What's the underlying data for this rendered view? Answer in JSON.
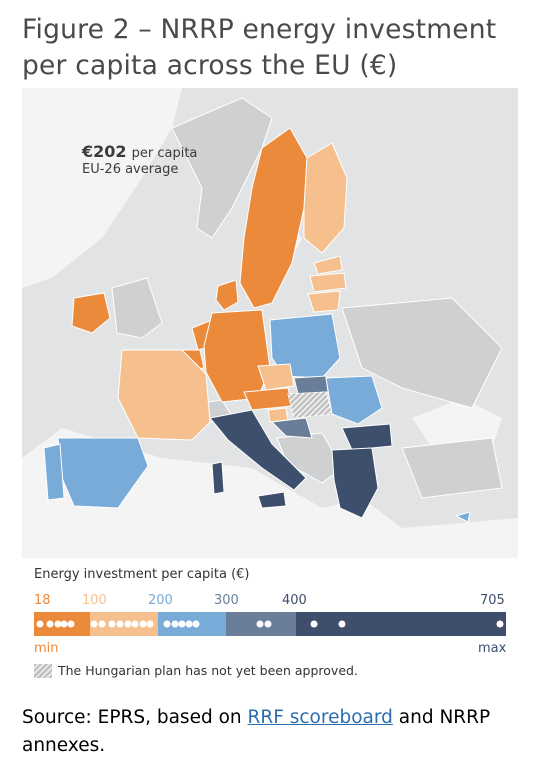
{
  "title": "Figure 2 – NRRP energy investment per capita across the EU (€)",
  "average": {
    "value": "€202",
    "unit": "per capita",
    "label": "EU-26 average"
  },
  "legend": {
    "title": "Energy investment per capita (€)",
    "breaks": [
      "18",
      "100",
      "200",
      "300",
      "400",
      "705"
    ],
    "min_label": "min",
    "max_label": "max",
    "classes": [
      {
        "from": 18,
        "to": 100,
        "color": "#ec8a3b"
      },
      {
        "from": 100,
        "to": 200,
        "color": "#f5bf8e"
      },
      {
        "from": 200,
        "to": 300,
        "color": "#79abd9"
      },
      {
        "from": 300,
        "to": 400,
        "color": "#6a7e99"
      },
      {
        "from": 400,
        "to": 705,
        "color": "#3e4f6d"
      }
    ],
    "hungary_note": "The Hungarian plan has not yet been approved."
  },
  "country_classes": {
    "Ireland": "18-100",
    "Sweden": "18-100",
    "Denmark": "18-100",
    "Germany": "18-100",
    "Netherlands": "18-100",
    "Belgium": "18-100",
    "Luxembourg": "18-100",
    "Czechia": "18-100",
    "Austria": "18-100",
    "Finland": "100-200",
    "Estonia": "100-200",
    "Latvia": "100-200",
    "Lithuania": "100-200",
    "France": "100-200",
    "Slovenia": "100-200",
    "Spain": "200-300",
    "Portugal": "200-300",
    "Poland": "200-300",
    "Romania": "200-300",
    "Cyprus": "200-300",
    "Slovakia": "300-400",
    "Croatia": "300-400",
    "Italy": "400-705",
    "Greece": "400-705",
    "Bulgaria": "400-705",
    "Malta": "400-705",
    "Hungary": "not approved"
  },
  "source": {
    "prefix": "Source: EPRS, based on ",
    "link": "RRF scoreboard",
    "suffix": " and NRRP annexes."
  }
}
